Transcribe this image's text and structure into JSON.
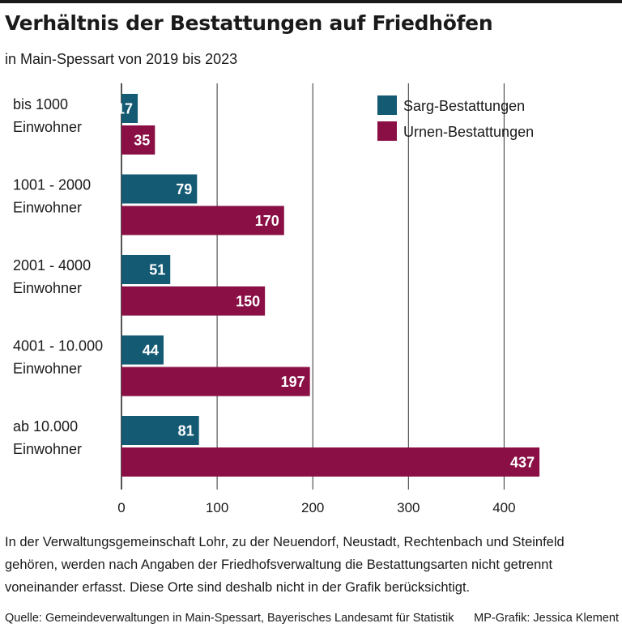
{
  "title": "Verhältnis der Bestattungen auf Friedhöfen",
  "subtitle": "in Main-Spessart von 2019 bis 2023",
  "chart_data": {
    "type": "bar",
    "orientation": "horizontal",
    "categories": [
      [
        "bis 1000",
        "Einwohner"
      ],
      [
        "1001 - 2000",
        "Einwohner"
      ],
      [
        "2001 - 4000",
        "Einwohner"
      ],
      [
        "4001 - 10.000",
        "Einwohner"
      ],
      [
        "ab 10.000",
        "Einwohner"
      ]
    ],
    "series": [
      {
        "name": "Sarg-Bestattungen",
        "color": "#145a73",
        "values": [
          17,
          79,
          51,
          44,
          81
        ]
      },
      {
        "name": "Urnen-Bestattungen",
        "color": "#8a0f45",
        "values": [
          35,
          170,
          150,
          197,
          437
        ]
      }
    ],
    "xlim": [
      0,
      440
    ],
    "xticks": [
      0,
      100,
      200,
      300,
      400
    ],
    "grid": true,
    "legend": "top-right"
  },
  "note": [
    "In der Verwaltungsgemeinschaft Lohr, zu der Neuendorf, Neustadt, Rechtenbach und Steinfeld",
    "gehören, werden nach Angaben der Friedhofsverwaltung die Bestattungsarten nicht getrennt",
    "voneinander erfasst. Diese Orte sind deshalb nicht in der Grafik berücksichtigt."
  ],
  "source": "Quelle: Gemeindeverwaltungen in Main-Spessart, Bayerisches Landesamt für Statistik",
  "credit": "MP-Grafik: Jessica Klement"
}
